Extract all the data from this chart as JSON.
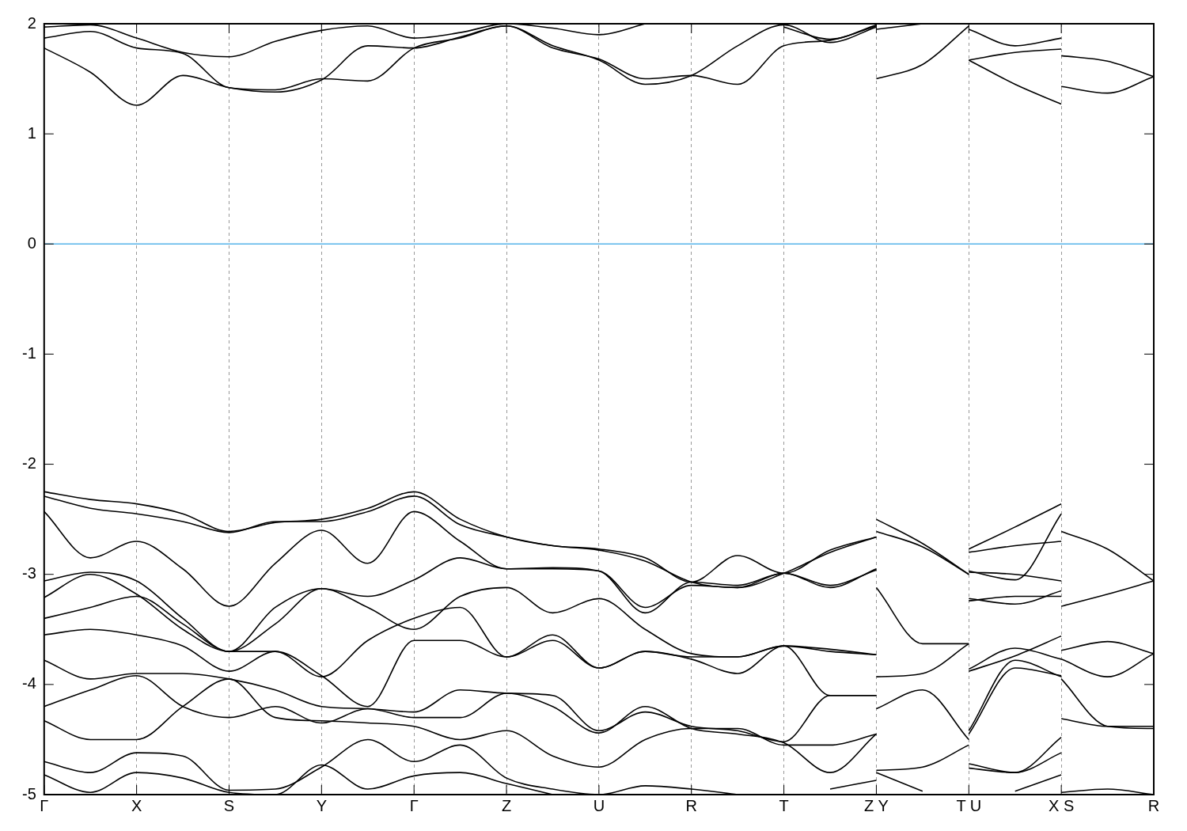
{
  "chart_data": {
    "type": "line",
    "categories": [
      "Γ",
      null,
      "X",
      null,
      "S",
      null,
      "Y",
      null,
      "Γ",
      null,
      "Z",
      null,
      "U",
      null,
      "R",
      null,
      "T",
      null,
      "Z Y",
      null,
      "T U",
      null,
      "X S",
      null,
      "R"
    ],
    "ylim": [
      -5,
      2
    ],
    "yticks": [
      -5,
      -4,
      -3,
      -2,
      -1,
      0,
      1,
      2
    ],
    "grid": "x",
    "legend": false,
    "marker": "none",
    "line_style": "solid",
    "ref_lines": [
      {
        "axis": "y",
        "value": 0,
        "color": "#56b4e9"
      }
    ],
    "series": [
      {
        "color": "#000000",
        "values": [
          1.78,
          1.56,
          1.26,
          1.53,
          1.42,
          1.38,
          1.49,
          1.8,
          1.78,
          1.88,
          1.98,
          1.8,
          1.67,
          1.45,
          1.53,
          1.8,
          1.99,
          1.83,
          1.97,
          null,
          null,
          null,
          null,
          null,
          null
        ]
      },
      {
        "color": "#000000",
        "values": [
          1.87,
          1.93,
          1.78,
          1.73,
          1.42,
          1.4,
          1.5,
          1.48,
          1.78,
          1.87,
          1.98,
          1.78,
          1.68,
          1.5,
          1.53,
          1.45,
          1.8,
          1.85,
          1.98,
          null,
          null,
          null,
          null,
          null,
          null
        ]
      },
      {
        "color": "#000000",
        "values": [
          1.97,
          1.99,
          1.87,
          1.74,
          1.7,
          1.84,
          1.94,
          1.98,
          1.87,
          1.92,
          2.0,
          1.96,
          1.9,
          2.0,
          null,
          null,
          1.97,
          1.86,
          1.99,
          null,
          null,
          null,
          null,
          null,
          null
        ]
      },
      {
        "color": "#000000",
        "values": [
          -2.25,
          -2.32,
          -2.36,
          -2.45,
          -2.61,
          -2.53,
          -2.5,
          -2.4,
          -2.25,
          -2.5,
          -2.66,
          -2.74,
          -2.77,
          -2.85,
          -3.07,
          -2.83,
          -2.99,
          -2.78,
          -2.66,
          null,
          null,
          null,
          null,
          null,
          null
        ]
      },
      {
        "color": "#000000",
        "values": [
          -2.29,
          -2.4,
          -2.45,
          -2.52,
          -2.62,
          -2.52,
          -2.52,
          -2.43,
          -2.29,
          -2.55,
          -2.66,
          -2.74,
          -2.78,
          -2.88,
          -3.07,
          -3.12,
          -2.99,
          -3.12,
          -2.95,
          null,
          null,
          null,
          null,
          null,
          null
        ]
      },
      {
        "color": "#000000",
        "values": [
          -2.43,
          -2.85,
          -2.7,
          -2.95,
          -3.29,
          -2.9,
          -2.6,
          -2.9,
          -2.43,
          -2.7,
          -2.95,
          -2.94,
          -2.97,
          -3.35,
          -3.07,
          -3.1,
          -2.99,
          -3.1,
          -2.96,
          null,
          null,
          null,
          null,
          null,
          null
        ]
      },
      {
        "color": "#000000",
        "values": [
          -3.06,
          -2.98,
          -3.06,
          -3.4,
          -3.7,
          -3.3,
          -3.13,
          -3.3,
          -3.5,
          -3.2,
          -3.12,
          -3.35,
          -3.22,
          -3.5,
          -3.72,
          -3.75,
          -3.65,
          -3.7,
          -3.73,
          null,
          null,
          null,
          null,
          null,
          null
        ]
      },
      {
        "color": "#000000",
        "values": [
          -3.21,
          -3.0,
          -3.18,
          -3.5,
          -3.7,
          -3.45,
          -3.13,
          -3.2,
          -3.05,
          -2.85,
          -2.95,
          -2.95,
          -2.97,
          -3.3,
          -3.1,
          -3.12,
          -2.99,
          -2.8,
          -2.66,
          null,
          null,
          null,
          null,
          null,
          null
        ]
      },
      {
        "color": "#000000",
        "values": [
          -3.4,
          -3.3,
          -3.2,
          -3.45,
          -3.7,
          -3.7,
          -3.93,
          -3.6,
          -3.4,
          -3.3,
          -3.75,
          -3.6,
          -3.85,
          -3.7,
          -3.75,
          -3.75,
          -3.65,
          -3.68,
          -3.73,
          null,
          null,
          null,
          null,
          null,
          null
        ]
      },
      {
        "color": "#000000",
        "values": [
          -3.55,
          -3.5,
          -3.55,
          -3.65,
          -3.88,
          -3.7,
          -3.92,
          -4.2,
          -3.6,
          -3.6,
          -3.75,
          -3.55,
          -3.85,
          -3.7,
          -3.77,
          -3.9,
          -3.65,
          -4.1,
          -4.1,
          null,
          null,
          null,
          null,
          null,
          null
        ]
      },
      {
        "color": "#000000",
        "values": [
          -3.78,
          -3.95,
          -3.9,
          -3.9,
          -3.95,
          -4.05,
          -4.2,
          -4.22,
          -4.25,
          -4.05,
          -4.08,
          -4.1,
          -4.42,
          -4.25,
          -4.38,
          -4.42,
          -4.52,
          -4.1,
          -4.1,
          null,
          null,
          null,
          null,
          null,
          null
        ]
      },
      {
        "color": "#000000",
        "values": [
          -4.2,
          -4.05,
          -3.92,
          -4.2,
          -4.3,
          -4.2,
          -4.35,
          -4.22,
          -4.3,
          -4.3,
          -4.08,
          -4.2,
          -4.44,
          -4.2,
          -4.4,
          -4.45,
          -4.53,
          -4.8,
          -4.45,
          null,
          null,
          null,
          null,
          null,
          null
        ]
      },
      {
        "color": "#000000",
        "values": [
          -4.33,
          -4.5,
          -4.5,
          -4.2,
          -3.95,
          -4.3,
          -4.33,
          -4.35,
          -4.38,
          -4.5,
          -4.42,
          -4.65,
          -4.75,
          -4.5,
          -4.4,
          -4.4,
          -4.55,
          -4.55,
          -4.45,
          null,
          null,
          null,
          null,
          null,
          null
        ]
      },
      {
        "color": "#000000",
        "values": [
          -4.7,
          -4.8,
          -4.62,
          -4.65,
          -4.96,
          -4.95,
          -4.75,
          -4.5,
          -4.7,
          -4.55,
          -4.85,
          -4.95,
          -5.0,
          -4.92,
          -4.95,
          -5.0,
          null,
          -4.95,
          -4.87,
          null,
          null,
          null,
          null,
          null,
          null
        ]
      },
      {
        "color": "#000000",
        "values": [
          -4.82,
          -4.98,
          -4.8,
          -4.85,
          -4.98,
          -5.0,
          -4.73,
          -4.95,
          -4.83,
          -4.8,
          -4.9,
          -5.0,
          null,
          null,
          null,
          null,
          null,
          null,
          null,
          null,
          null,
          null,
          null,
          null,
          null
        ]
      },
      {
        "color": "#000000",
        "values": [
          null,
          null,
          null,
          null,
          null,
          null,
          null,
          null,
          null,
          null,
          null,
          null,
          null,
          null,
          null,
          null,
          null,
          null,
          1.5,
          1.63,
          1.98,
          null,
          null,
          null,
          null
        ]
      },
      {
        "color": "#000000",
        "values": [
          null,
          null,
          null,
          null,
          null,
          null,
          null,
          null,
          null,
          null,
          null,
          null,
          null,
          null,
          null,
          null,
          null,
          null,
          1.95,
          2.0,
          null,
          null,
          null,
          null,
          null
        ]
      },
      {
        "color": "#000000",
        "values": [
          null,
          null,
          null,
          null,
          null,
          null,
          null,
          null,
          null,
          null,
          null,
          null,
          null,
          null,
          null,
          null,
          null,
          null,
          -2.5,
          -2.72,
          -3.0,
          null,
          null,
          null,
          null
        ]
      },
      {
        "color": "#000000",
        "values": [
          null,
          null,
          null,
          null,
          null,
          null,
          null,
          null,
          null,
          null,
          null,
          null,
          null,
          null,
          null,
          null,
          null,
          null,
          -2.61,
          -2.75,
          -3.0,
          null,
          null,
          null,
          null
        ]
      },
      {
        "color": "#000000",
        "values": [
          null,
          null,
          null,
          null,
          null,
          null,
          null,
          null,
          null,
          null,
          null,
          null,
          null,
          null,
          null,
          null,
          null,
          null,
          -3.12,
          -3.63,
          -3.63,
          null,
          null,
          null,
          null
        ]
      },
      {
        "color": "#000000",
        "values": [
          null,
          null,
          null,
          null,
          null,
          null,
          null,
          null,
          null,
          null,
          null,
          null,
          null,
          null,
          null,
          null,
          null,
          null,
          -3.93,
          -3.9,
          -3.63,
          null,
          null,
          null,
          null
        ]
      },
      {
        "color": "#000000",
        "values": [
          null,
          null,
          null,
          null,
          null,
          null,
          null,
          null,
          null,
          null,
          null,
          null,
          null,
          null,
          null,
          null,
          null,
          null,
          -4.22,
          -4.05,
          -4.5,
          null,
          null,
          null,
          null
        ]
      },
      {
        "color": "#000000",
        "values": [
          null,
          null,
          null,
          null,
          null,
          null,
          null,
          null,
          null,
          null,
          null,
          null,
          null,
          null,
          null,
          null,
          null,
          null,
          -4.78,
          -4.75,
          -4.55,
          null,
          null,
          null,
          null
        ]
      },
      {
        "color": "#000000",
        "values": [
          null,
          null,
          null,
          null,
          null,
          null,
          null,
          null,
          null,
          null,
          null,
          null,
          null,
          null,
          null,
          null,
          null,
          null,
          -4.8,
          -4.97,
          null,
          null,
          null,
          null,
          null
        ]
      },
      {
        "color": "#000000",
        "values": [
          null,
          null,
          null,
          null,
          null,
          null,
          null,
          null,
          null,
          null,
          null,
          null,
          null,
          null,
          null,
          null,
          null,
          null,
          null,
          null,
          1.67,
          1.45,
          1.27,
          null,
          null
        ]
      },
      {
        "color": "#000000",
        "values": [
          null,
          null,
          null,
          null,
          null,
          null,
          null,
          null,
          null,
          null,
          null,
          null,
          null,
          null,
          null,
          null,
          null,
          null,
          null,
          null,
          1.67,
          1.74,
          1.77,
          null,
          null
        ]
      },
      {
        "color": "#000000",
        "values": [
          null,
          null,
          null,
          null,
          null,
          null,
          null,
          null,
          null,
          null,
          null,
          null,
          null,
          null,
          null,
          null,
          null,
          null,
          null,
          null,
          1.95,
          1.8,
          1.87,
          null,
          null
        ]
      },
      {
        "color": "#000000",
        "values": [
          null,
          null,
          null,
          null,
          null,
          null,
          null,
          null,
          null,
          null,
          null,
          null,
          null,
          null,
          null,
          null,
          null,
          null,
          null,
          null,
          -2.77,
          -2.57,
          -2.36,
          null,
          null
        ]
      },
      {
        "color": "#000000",
        "values": [
          null,
          null,
          null,
          null,
          null,
          null,
          null,
          null,
          null,
          null,
          null,
          null,
          null,
          null,
          null,
          null,
          null,
          null,
          null,
          null,
          -2.8,
          -2.74,
          -2.7,
          null,
          null
        ]
      },
      {
        "color": "#000000",
        "values": [
          null,
          null,
          null,
          null,
          null,
          null,
          null,
          null,
          null,
          null,
          null,
          null,
          null,
          null,
          null,
          null,
          null,
          null,
          null,
          null,
          -2.97,
          -3.05,
          -2.45,
          null,
          null
        ]
      },
      {
        "color": "#000000",
        "values": [
          null,
          null,
          null,
          null,
          null,
          null,
          null,
          null,
          null,
          null,
          null,
          null,
          null,
          null,
          null,
          null,
          null,
          null,
          null,
          null,
          -2.98,
          -3.0,
          -3.06,
          null,
          null
        ]
      },
      {
        "color": "#000000",
        "values": [
          null,
          null,
          null,
          null,
          null,
          null,
          null,
          null,
          null,
          null,
          null,
          null,
          null,
          null,
          null,
          null,
          null,
          null,
          null,
          null,
          -3.22,
          -3.27,
          -3.15,
          null,
          null
        ]
      },
      {
        "color": "#000000",
        "values": [
          null,
          null,
          null,
          null,
          null,
          null,
          null,
          null,
          null,
          null,
          null,
          null,
          null,
          null,
          null,
          null,
          null,
          null,
          null,
          null,
          -3.24,
          -3.2,
          -3.2,
          null,
          null
        ]
      },
      {
        "color": "#000000",
        "values": [
          null,
          null,
          null,
          null,
          null,
          null,
          null,
          null,
          null,
          null,
          null,
          null,
          null,
          null,
          null,
          null,
          null,
          null,
          null,
          null,
          -3.86,
          -3.67,
          -3.77,
          null,
          null
        ]
      },
      {
        "color": "#000000",
        "values": [
          null,
          null,
          null,
          null,
          null,
          null,
          null,
          null,
          null,
          null,
          null,
          null,
          null,
          null,
          null,
          null,
          null,
          null,
          null,
          null,
          -3.88,
          -3.74,
          -3.56,
          null,
          null
        ]
      },
      {
        "color": "#000000",
        "values": [
          null,
          null,
          null,
          null,
          null,
          null,
          null,
          null,
          null,
          null,
          null,
          null,
          null,
          null,
          null,
          null,
          null,
          null,
          null,
          null,
          -4.42,
          -3.78,
          -3.93,
          null,
          null
        ]
      },
      {
        "color": "#000000",
        "values": [
          null,
          null,
          null,
          null,
          null,
          null,
          null,
          null,
          null,
          null,
          null,
          null,
          null,
          null,
          null,
          null,
          null,
          null,
          null,
          null,
          -4.45,
          -3.85,
          -3.92,
          null,
          null
        ]
      },
      {
        "color": "#000000",
        "values": [
          null,
          null,
          null,
          null,
          null,
          null,
          null,
          null,
          null,
          null,
          null,
          null,
          null,
          null,
          null,
          null,
          null,
          null,
          null,
          null,
          -4.72,
          -4.8,
          -4.48,
          null,
          null
        ]
      },
      {
        "color": "#000000",
        "values": [
          null,
          null,
          null,
          null,
          null,
          null,
          null,
          null,
          null,
          null,
          null,
          null,
          null,
          null,
          null,
          null,
          null,
          null,
          null,
          null,
          -4.76,
          -4.8,
          -4.62,
          null,
          null
        ]
      },
      {
        "color": "#000000",
        "values": [
          null,
          null,
          null,
          null,
          null,
          null,
          null,
          null,
          null,
          null,
          null,
          null,
          null,
          null,
          null,
          null,
          null,
          null,
          null,
          null,
          null,
          -4.97,
          -4.82,
          null,
          null
        ]
      },
      {
        "color": "#000000",
        "values": [
          null,
          null,
          null,
          null,
          null,
          null,
          null,
          null,
          null,
          null,
          null,
          null,
          null,
          null,
          null,
          null,
          null,
          null,
          null,
          null,
          null,
          null,
          1.71,
          1.66,
          1.52
        ]
      },
      {
        "color": "#000000",
        "values": [
          null,
          null,
          null,
          null,
          null,
          null,
          null,
          null,
          null,
          null,
          null,
          null,
          null,
          null,
          null,
          null,
          null,
          null,
          null,
          null,
          null,
          null,
          1.43,
          1.37,
          1.52
        ]
      },
      {
        "color": "#000000",
        "values": [
          null,
          null,
          null,
          null,
          null,
          null,
          null,
          null,
          null,
          null,
          null,
          null,
          null,
          null,
          null,
          null,
          null,
          null,
          null,
          null,
          null,
          null,
          -2.61,
          -2.77,
          -3.06
        ]
      },
      {
        "color": "#000000",
        "values": [
          null,
          null,
          null,
          null,
          null,
          null,
          null,
          null,
          null,
          null,
          null,
          null,
          null,
          null,
          null,
          null,
          null,
          null,
          null,
          null,
          null,
          null,
          -3.29,
          -3.18,
          -3.06
        ]
      },
      {
        "color": "#000000",
        "values": [
          null,
          null,
          null,
          null,
          null,
          null,
          null,
          null,
          null,
          null,
          null,
          null,
          null,
          null,
          null,
          null,
          null,
          null,
          null,
          null,
          null,
          null,
          -3.69,
          -3.61,
          -3.72
        ]
      },
      {
        "color": "#000000",
        "values": [
          null,
          null,
          null,
          null,
          null,
          null,
          null,
          null,
          null,
          null,
          null,
          null,
          null,
          null,
          null,
          null,
          null,
          null,
          null,
          null,
          null,
          null,
          -3.77,
          -3.93,
          -3.72
        ]
      },
      {
        "color": "#000000",
        "values": [
          null,
          null,
          null,
          null,
          null,
          null,
          null,
          null,
          null,
          null,
          null,
          null,
          null,
          null,
          null,
          null,
          null,
          null,
          null,
          null,
          null,
          null,
          -3.95,
          -4.38,
          -4.4
        ]
      },
      {
        "color": "#000000",
        "values": [
          null,
          null,
          null,
          null,
          null,
          null,
          null,
          null,
          null,
          null,
          null,
          null,
          null,
          null,
          null,
          null,
          null,
          null,
          null,
          null,
          null,
          null,
          -4.31,
          -4.38,
          -4.38
        ]
      },
      {
        "color": "#000000",
        "values": [
          null,
          null,
          null,
          null,
          null,
          null,
          null,
          null,
          null,
          null,
          null,
          null,
          null,
          null,
          null,
          null,
          null,
          null,
          null,
          null,
          null,
          null,
          -4.98,
          -4.95,
          -5.0
        ]
      }
    ]
  }
}
